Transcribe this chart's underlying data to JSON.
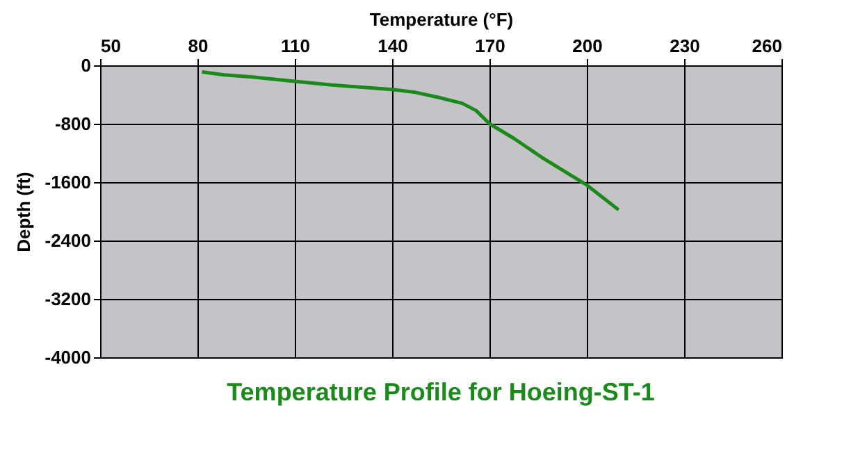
{
  "chart_data": {
    "type": "line",
    "title": "Temperature Profile for Hoeing-ST-1",
    "xlabel": "Temperature (°F)",
    "ylabel": "Depth (ft)",
    "series": [
      {
        "color": "#1a8a1a",
        "x": [
          81.4,
          88.3,
          96.9,
          110,
          121.5,
          140,
          147.2,
          154.4,
          161.6,
          165.9,
          170,
          177.5,
          186.1,
          200,
          209.8
        ],
        "values": [
          -90,
          -130,
          -160,
          -220,
          -270,
          -330,
          -370,
          -440,
          -520,
          -620,
          -800,
          -1000,
          -1260,
          -1640,
          -1980
        ]
      }
    ],
    "xlim": [
      50,
      260
    ],
    "xticks": [
      50,
      80,
      110,
      140,
      170,
      200,
      230,
      260
    ],
    "ylim": [
      -4000,
      0
    ],
    "yticks": [
      -4000,
      -3200,
      -2400,
      -1600,
      -800,
      0
    ],
    "grid": true,
    "marker": "none",
    "line_style": "solid"
  }
}
